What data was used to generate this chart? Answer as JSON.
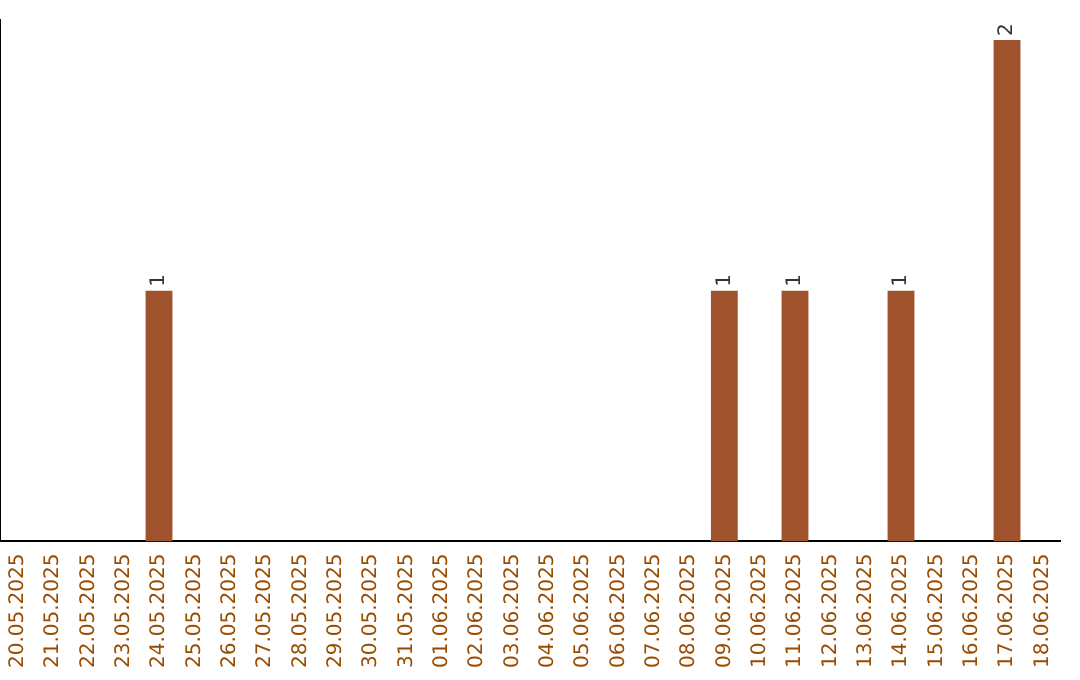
{
  "chart_data": {
    "type": "bar",
    "categories": [
      "20.05.2025",
      "21.05.2025",
      "22.05.2025",
      "23.05.2025",
      "24.05.2025",
      "25.05.2025",
      "26.05.2025",
      "27.05.2025",
      "28.05.2025",
      "29.05.2025",
      "30.05.2025",
      "31.05.2025",
      "01.06.2025",
      "02.06.2025",
      "03.06.2025",
      "04.06.2025",
      "05.06.2025",
      "06.06.2025",
      "07.06.2025",
      "08.06.2025",
      "09.06.2025",
      "10.06.2025",
      "11.06.2025",
      "12.06.2025",
      "13.06.2025",
      "14.06.2025",
      "15.06.2025",
      "16.06.2025",
      "17.06.2025",
      "18.06.2025"
    ],
    "values": [
      0,
      0,
      0,
      0,
      1,
      0,
      0,
      0,
      0,
      0,
      0,
      0,
      0,
      0,
      0,
      0,
      0,
      0,
      0,
      0,
      1,
      0,
      1,
      0,
      0,
      1,
      0,
      0,
      2,
      0
    ],
    "value_labels": [
      null,
      null,
      null,
      null,
      "1",
      null,
      null,
      null,
      null,
      null,
      null,
      null,
      null,
      null,
      null,
      null,
      null,
      null,
      null,
      null,
      "1",
      null,
      "1",
      null,
      null,
      "1",
      null,
      null,
      "2",
      null
    ],
    "color": "#a0522d",
    "ylim": [
      0,
      2.08
    ],
    "tick_labels": "x",
    "grid": false,
    "legend": false
  }
}
